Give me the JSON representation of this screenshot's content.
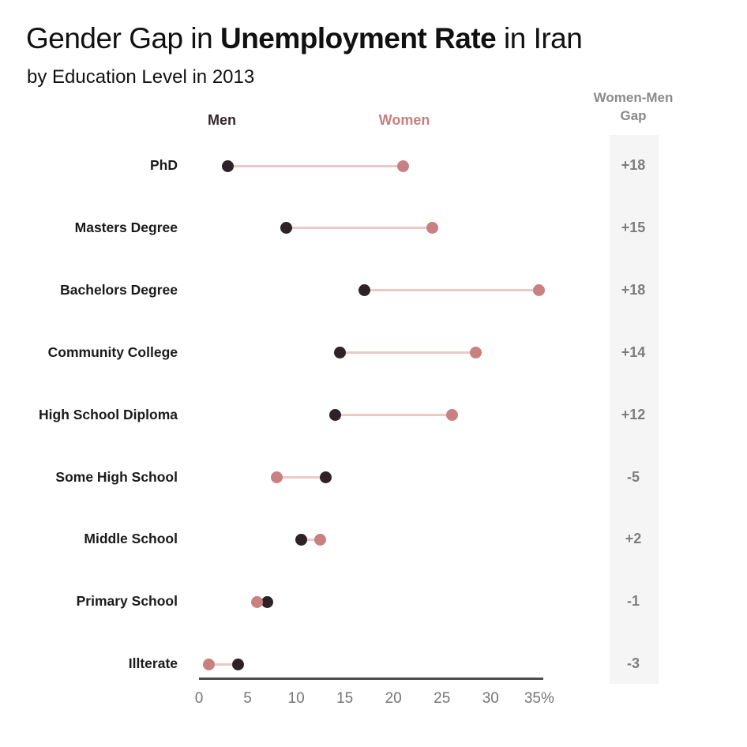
{
  "header": {
    "title_prefix": "Gender Gap in ",
    "title_bold": "Unemployment Rate",
    "title_suffix": " in Iran",
    "subtitle": "by Education Level in 2013"
  },
  "legend": {
    "men_label": "Men",
    "women_label": "Women"
  },
  "gap_column": {
    "header_line1": "Women-Men",
    "header_line2": "Gap"
  },
  "colors": {
    "men_dot": "#2e2227",
    "women_dot": "#c88180",
    "connector": "#ecc9c7",
    "men_legend_text": "#34262b",
    "women_legend_text": "#c87f7e",
    "gap_text": "#7d7d7d",
    "gap_header_text": "#8a8a8a",
    "strip_bg": "#f5f5f5",
    "axis_line": "#4d4d4d",
    "tick_text": "#757575",
    "label_text": "#1a1a1a"
  },
  "chart_data": {
    "type": "dumbbell",
    "title": "Gender Gap in Unemployment Rate in Iran",
    "subtitle": "by Education Level in 2013",
    "unit": "percent unemployment rate",
    "categories": [
      "PhD",
      "Masters Degree",
      "Bachelors Degree",
      "Community College",
      "High School Diploma",
      "Some High School",
      "Middle School",
      "Primary School",
      "Illterate"
    ],
    "series": [
      {
        "name": "Men",
        "values": [
          3,
          9,
          17,
          14.5,
          14,
          13,
          10.5,
          7,
          4
        ]
      },
      {
        "name": "Women",
        "values": [
          21,
          24,
          35,
          28.5,
          26,
          8,
          12.5,
          6,
          1
        ]
      }
    ],
    "gap_labels": [
      "+18",
      "+15",
      "+18",
      "+14",
      "+12",
      "-5",
      "+2",
      "-1",
      "-3"
    ],
    "x_axis": {
      "range": [
        0,
        35
      ],
      "ticks": [
        0,
        5,
        10,
        15,
        20,
        25,
        30,
        35
      ],
      "tick_labels": [
        "0",
        "5",
        "10",
        "15",
        "20",
        "25",
        "30",
        "35%"
      ]
    },
    "legend_position": "top",
    "grid": false
  }
}
